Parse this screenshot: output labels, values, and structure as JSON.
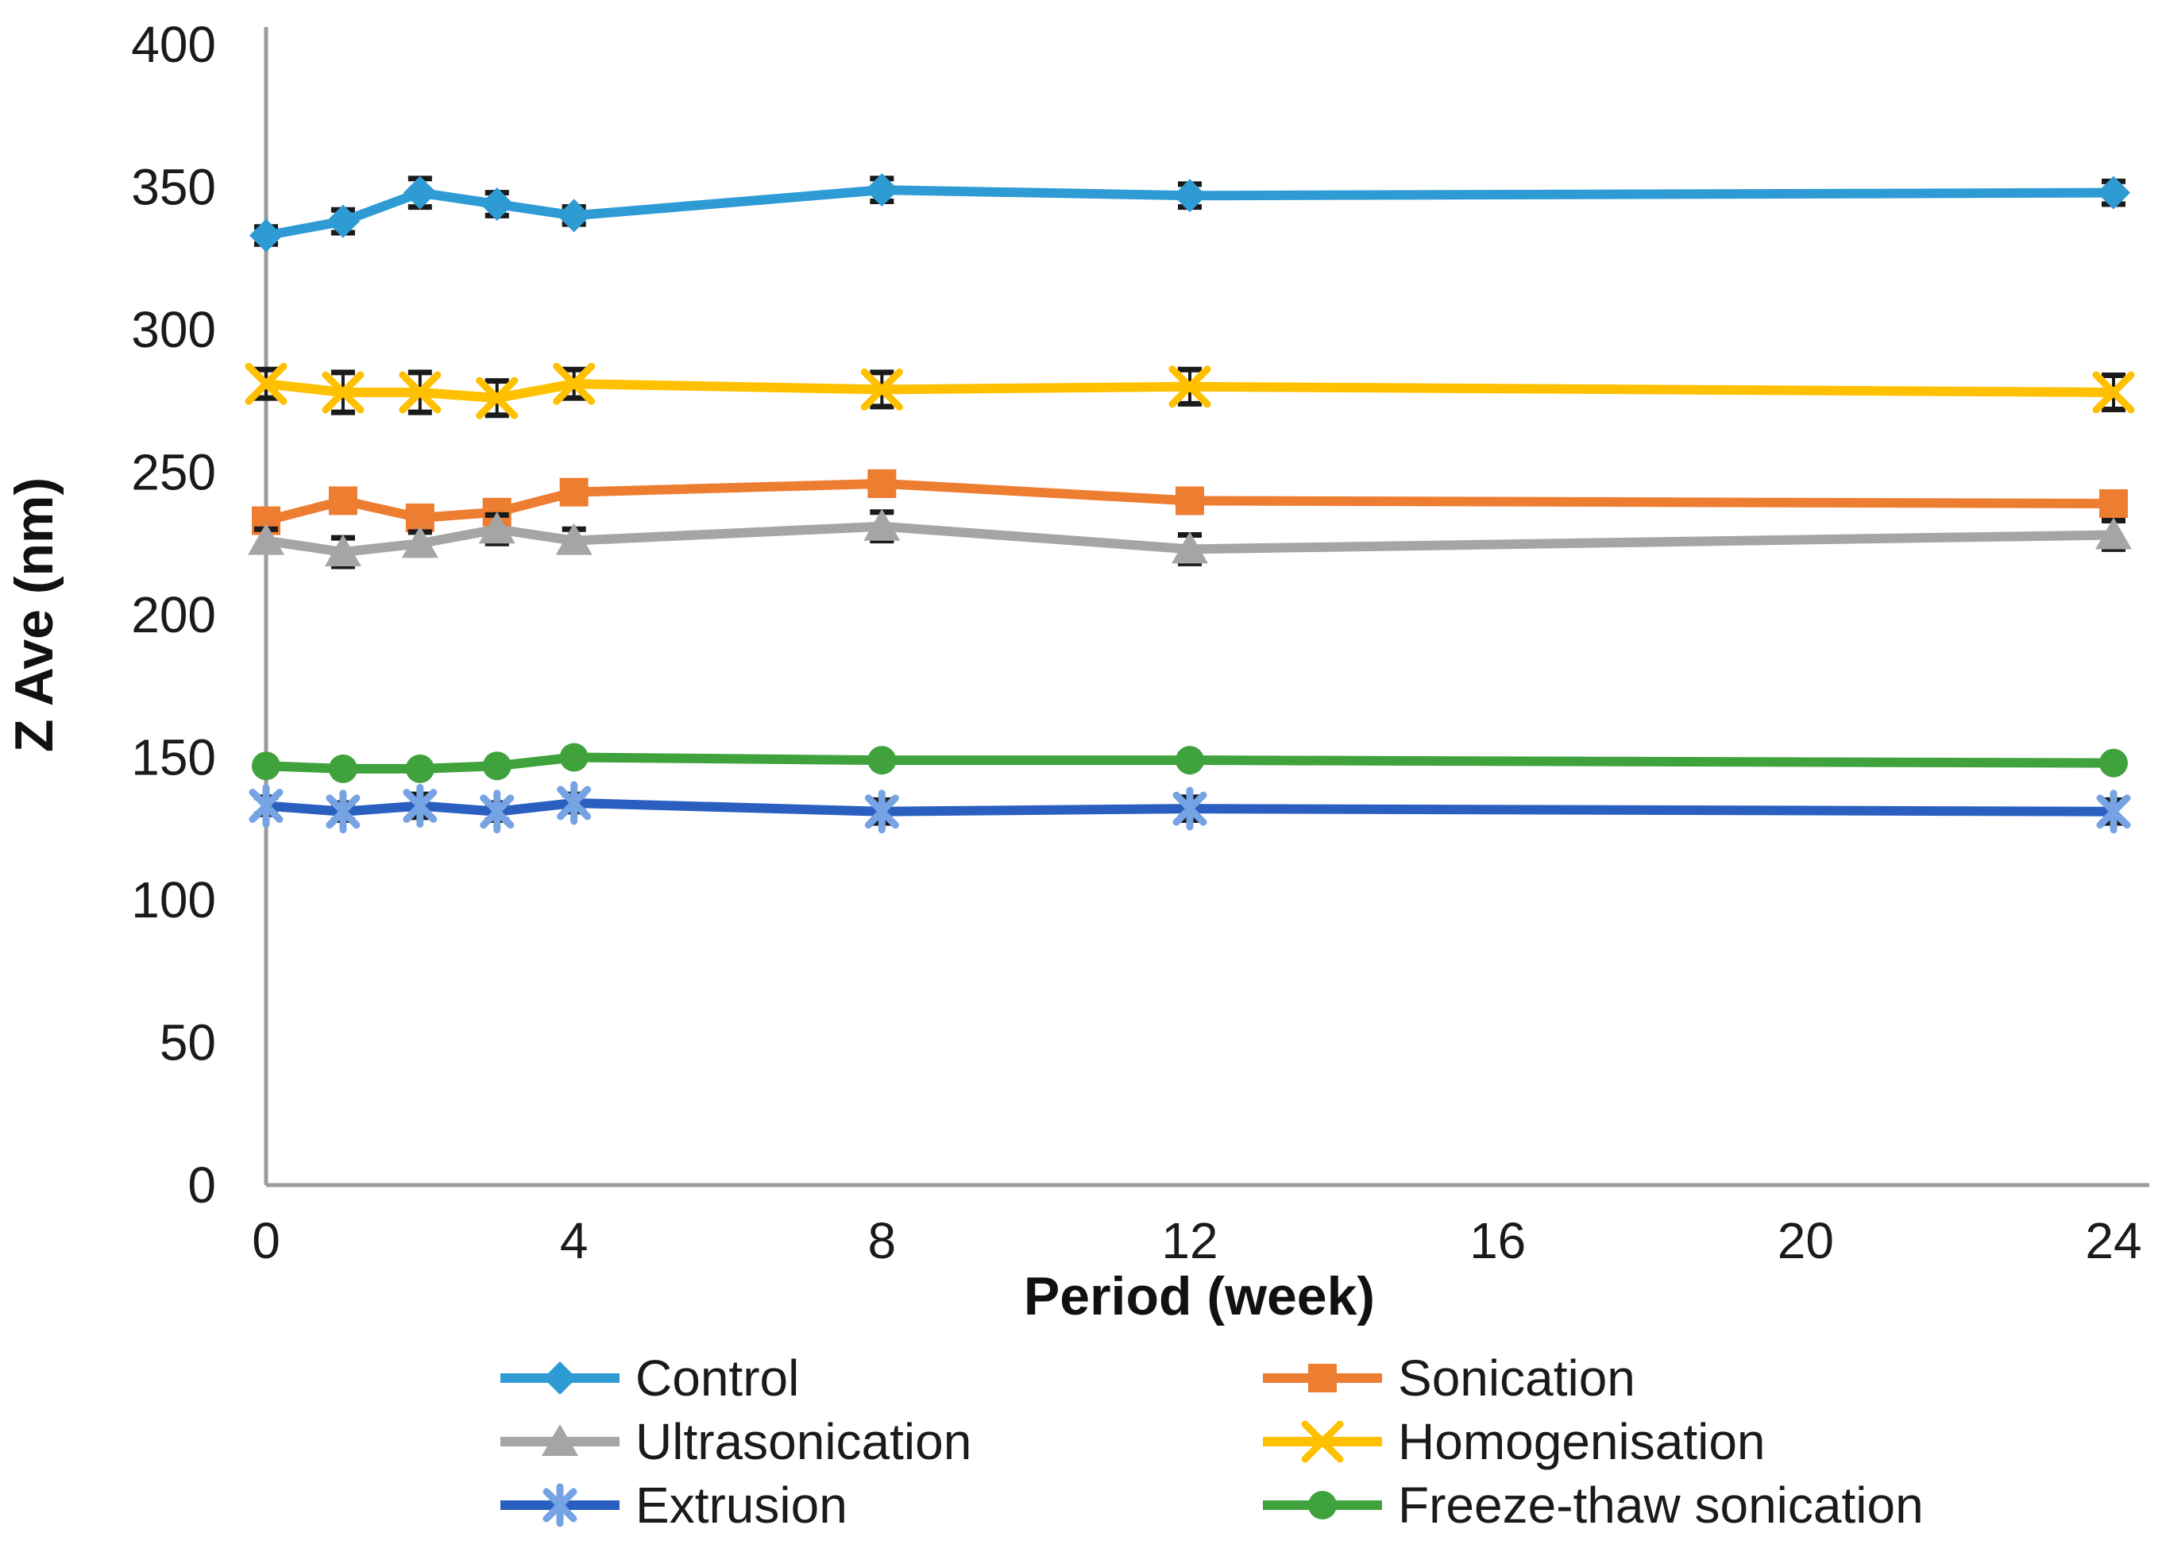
{
  "figure": {
    "background_color": "#ffffff",
    "axis_line_color": "#9b9b9b",
    "text_color": "#1a1a1a",
    "error_bar_color": "#1a1a1a"
  },
  "chart_data": {
    "type": "line",
    "title": "",
    "xlabel": "Period (week)",
    "ylabel": "Z Ave (nm)",
    "xlim": [
      0,
      24
    ],
    "ylim": [
      0,
      400
    ],
    "x_ticks": [
      0,
      4,
      8,
      12,
      16,
      20,
      24
    ],
    "y_ticks": [
      0,
      50,
      100,
      150,
      200,
      250,
      300,
      350,
      400
    ],
    "grid": false,
    "legend_position": "bottom",
    "legend_columns": 2,
    "x": [
      0,
      1,
      2,
      3,
      4,
      8,
      12,
      24
    ],
    "series": [
      {
        "name": "Control",
        "color": "#2E9BD5",
        "marker": "diamond",
        "marker_color": "#2E9BD5",
        "values": [
          333,
          338,
          348,
          344,
          340,
          349,
          347,
          348
        ],
        "errors": [
          3,
          4,
          5,
          4,
          3,
          4,
          4,
          4
        ]
      },
      {
        "name": "Sonication",
        "color": "#ED7D31",
        "marker": "square",
        "marker_color": "#ED7D31",
        "values": [
          233,
          240,
          234,
          236,
          243,
          246,
          240,
          239
        ],
        "errors": [
          3,
          3,
          3,
          3,
          3,
          4,
          4,
          4
        ]
      },
      {
        "name": "Ultrasonication",
        "color": "#A5A5A5",
        "marker": "triangle",
        "marker_color": "#A5A5A5",
        "values": [
          226,
          222,
          225,
          230,
          226,
          231,
          223,
          228
        ],
        "errors": [
          4,
          5,
          4,
          5,
          4,
          5,
          5,
          5
        ]
      },
      {
        "name": "Homogenisation",
        "color": "#FFC000",
        "marker": "x",
        "marker_color": "#FFC000",
        "values": [
          281,
          278,
          278,
          276,
          281,
          279,
          280,
          278
        ],
        "errors": [
          5,
          7,
          7,
          6,
          5,
          6,
          6,
          6
        ]
      },
      {
        "name": "Extrusion",
        "color": "#2A5FC0",
        "marker": "asterisk",
        "marker_color": "#75A3E3",
        "values": [
          133,
          131,
          133,
          131,
          134,
          131,
          132,
          131
        ],
        "errors": [
          3,
          3,
          4,
          3,
          3,
          4,
          4,
          4
        ]
      },
      {
        "name": "Freeze-thaw sonication",
        "color": "#3FA23C",
        "marker": "circle",
        "marker_color": "#3FA23C",
        "values": [
          147,
          146,
          146,
          147,
          150,
          149,
          149,
          148
        ],
        "errors": [
          0,
          0,
          0,
          0,
          0,
          0,
          0,
          0
        ]
      }
    ],
    "legend_column_series": [
      [
        0,
        2,
        4
      ],
      [
        1,
        3,
        5
      ]
    ]
  }
}
